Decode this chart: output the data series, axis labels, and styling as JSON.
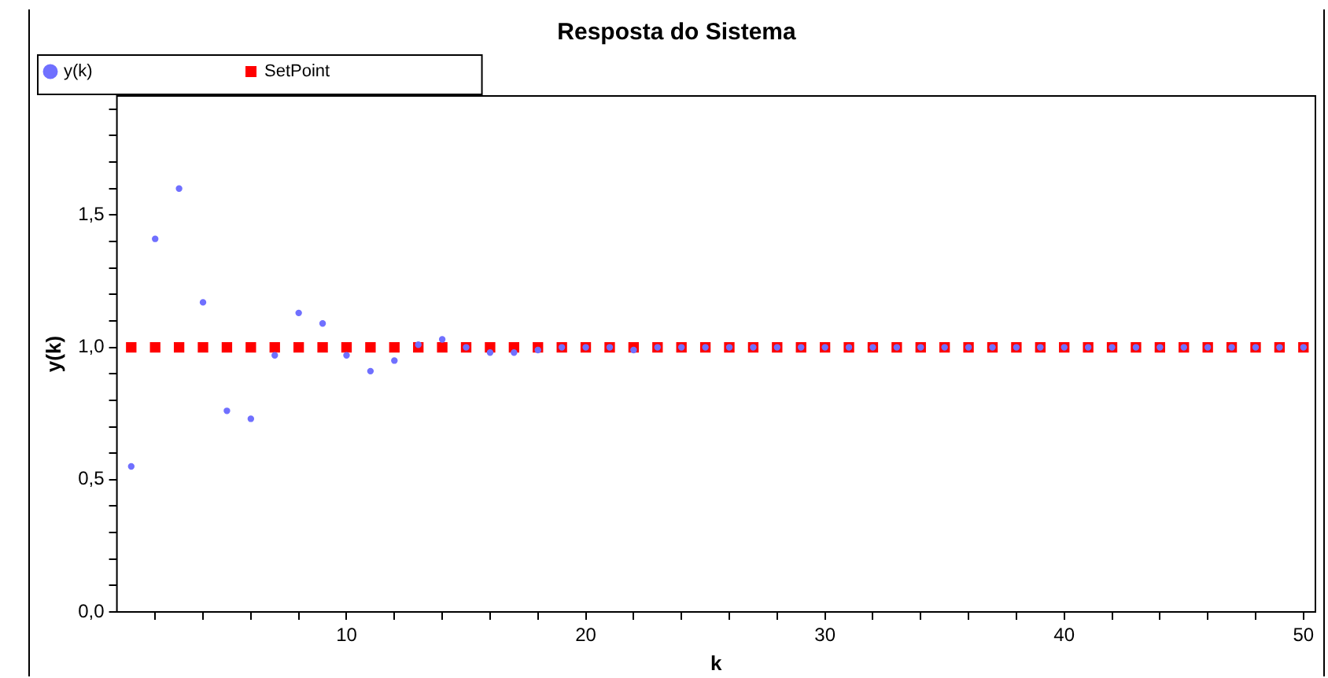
{
  "chart_data": {
    "type": "scatter",
    "title": "Resposta do Sistema",
    "xlabel": "k",
    "ylabel": "y(k)",
    "x": [
      1,
      2,
      3,
      4,
      5,
      6,
      7,
      8,
      9,
      10,
      11,
      12,
      13,
      14,
      15,
      16,
      17,
      18,
      19,
      20,
      21,
      22,
      23,
      24,
      25,
      26,
      27,
      28,
      29,
      30,
      31,
      32,
      33,
      34,
      35,
      36,
      37,
      38,
      39,
      40,
      41,
      42,
      43,
      44,
      45,
      46,
      47,
      48,
      49,
      50
    ],
    "series": [
      {
        "name": "y(k)",
        "color": "#7070ff",
        "marker": "circle",
        "values": [
          0.55,
          1.41,
          1.6,
          1.17,
          0.76,
          0.73,
          0.97,
          1.13,
          1.09,
          0.97,
          0.91,
          0.95,
          1.01,
          1.03,
          1.0,
          0.98,
          0.98,
          0.99,
          1.0,
          1.0,
          1.0,
          0.99,
          1.0,
          1.0,
          1.0,
          1.0,
          1.0,
          1.0,
          1.0,
          1.0,
          1.0,
          1.0,
          1.0,
          1.0,
          1.0,
          1.0,
          1.0,
          1.0,
          1.0,
          1.0,
          1.0,
          1.0,
          1.0,
          1.0,
          1.0,
          1.0,
          1.0,
          1.0,
          1.0,
          1.0
        ]
      },
      {
        "name": "SetPoint",
        "color": "#ff0000",
        "marker": "square",
        "values": [
          1,
          1,
          1,
          1,
          1,
          1,
          1,
          1,
          1,
          1,
          1,
          1,
          1,
          1,
          1,
          1,
          1,
          1,
          1,
          1,
          1,
          1,
          1,
          1,
          1,
          1,
          1,
          1,
          1,
          1,
          1,
          1,
          1,
          1,
          1,
          1,
          1,
          1,
          1,
          1,
          1,
          1,
          1,
          1,
          1,
          1,
          1,
          1,
          1,
          1
        ]
      }
    ],
    "xlim": [
      0.4,
      50.5
    ],
    "xticks": [
      {
        "value": 2,
        "label": null
      },
      {
        "value": 4,
        "label": null
      },
      {
        "value": 6,
        "label": null
      },
      {
        "value": 8,
        "label": null
      },
      10,
      {
        "value": 12,
        "label": null
      },
      {
        "value": 14,
        "label": null
      },
      {
        "value": 16,
        "label": null
      },
      {
        "value": 18,
        "label": null
      },
      20,
      {
        "value": 22,
        "label": null
      },
      {
        "value": 24,
        "label": null
      },
      {
        "value": 26,
        "label": null
      },
      {
        "value": 28,
        "label": null
      },
      30,
      {
        "value": 32,
        "label": null
      },
      {
        "value": 34,
        "label": null
      },
      {
        "value": 36,
        "label": null
      },
      {
        "value": 38,
        "label": null
      },
      40,
      {
        "value": 42,
        "label": null
      },
      {
        "value": 44,
        "label": null
      },
      {
        "value": 46,
        "label": null
      },
      {
        "value": 48,
        "label": null
      },
      50
    ],
    "ylim": [
      0,
      1.95
    ],
    "yticks": [
      {
        "value": 0,
        "label": "0,0"
      },
      {
        "value": 0.1,
        "label": null
      },
      {
        "value": 0.2,
        "label": null
      },
      {
        "value": 0.3,
        "label": null
      },
      {
        "value": 0.4,
        "label": null
      },
      {
        "value": 0.5,
        "label": "0,5"
      },
      {
        "value": 0.6,
        "label": null
      },
      {
        "value": 0.7,
        "label": null
      },
      {
        "value": 0.8,
        "label": null
      },
      {
        "value": 0.9,
        "label": null
      },
      {
        "value": 1.0,
        "label": "1,0"
      },
      {
        "value": 1.1,
        "label": null
      },
      {
        "value": 1.2,
        "label": null
      },
      {
        "value": 1.3,
        "label": null
      },
      {
        "value": 1.4,
        "label": null
      },
      {
        "value": 1.5,
        "label": "1,5"
      },
      {
        "value": 1.6,
        "label": null
      },
      {
        "value": 1.7,
        "label": null
      },
      {
        "value": 1.8,
        "label": null
      },
      {
        "value": 1.9,
        "label": null
      }
    ],
    "grid": false,
    "legend": "top left"
  }
}
